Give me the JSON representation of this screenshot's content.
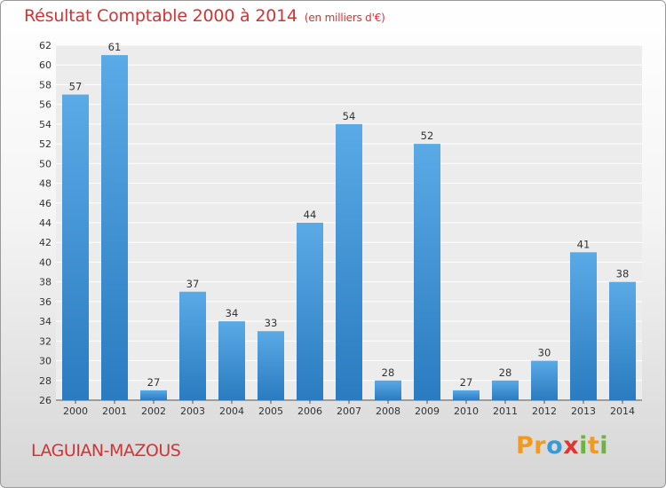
{
  "chart_data": {
    "type": "bar",
    "title": "Résultat Comptable 2000 à 2014",
    "subtitle": "(en milliers d'€)",
    "categories": [
      "2000",
      "2001",
      "2002",
      "2003",
      "2004",
      "2005",
      "2006",
      "2007",
      "2008",
      "2009",
      "2010",
      "2011",
      "2012",
      "2013",
      "2014"
    ],
    "values": [
      57,
      61,
      27,
      37,
      34,
      33,
      44,
      54,
      28,
      52,
      27,
      28,
      30,
      41,
      38
    ],
    "ylim": [
      26,
      62
    ],
    "yticks": [
      26,
      28,
      30,
      32,
      34,
      36,
      38,
      40,
      42,
      44,
      46,
      48,
      50,
      52,
      54,
      56,
      58,
      60,
      62
    ],
    "grid": true,
    "legend": "none",
    "bar_color": "#3a8fd6",
    "bar_color_light": "#5aaae6",
    "bar_color_dark": "#2a7bc0"
  },
  "commune": "LAGUIAN-MAZOUS",
  "logo": {
    "letters": [
      "P",
      "r",
      "o",
      "x",
      "i",
      "t",
      "i"
    ],
    "colors": [
      "#f29a1f",
      "#f29a1f",
      "#3a9ad9",
      "#e0362f",
      "#6cb33f",
      "#f29a1f",
      "#6cb33f"
    ]
  }
}
